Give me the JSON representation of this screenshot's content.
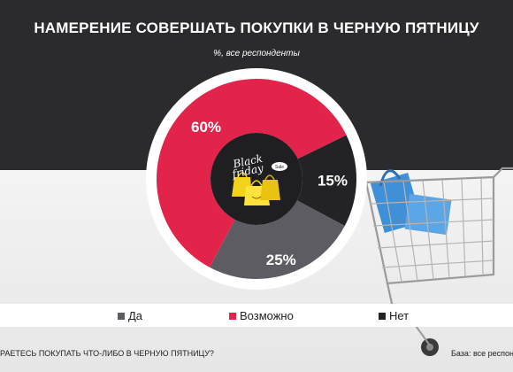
{
  "header": {
    "title": "НАМЕРЕНИЕ СОВЕРШАТЬ ПОКУПКИ В ЧЕРНУЮ ПЯТНИЦУ",
    "subtitle": "%,  все респонденты"
  },
  "chart_data": {
    "type": "pie",
    "categories": [
      "Да",
      "Возможно",
      "Нет"
    ],
    "values": [
      25,
      60,
      15
    ],
    "labels": [
      "25%",
      "60%",
      "15%"
    ],
    "colors": [
      "#5d5c62",
      "#e2234a",
      "#232326"
    ],
    "legend_position": "bottom"
  },
  "center_icon": {
    "name": "black-friday-bags-icon",
    "text_line1": "Black",
    "text_line2": "friday",
    "tag": "Sale"
  },
  "footer": {
    "question": "РАЕТЕСЬ ПОКУПАТЬ ЧТО-ЛИБО В ЧЕРНУЮ ПЯТНИЦУ?",
    "base": "База: все респонд"
  }
}
